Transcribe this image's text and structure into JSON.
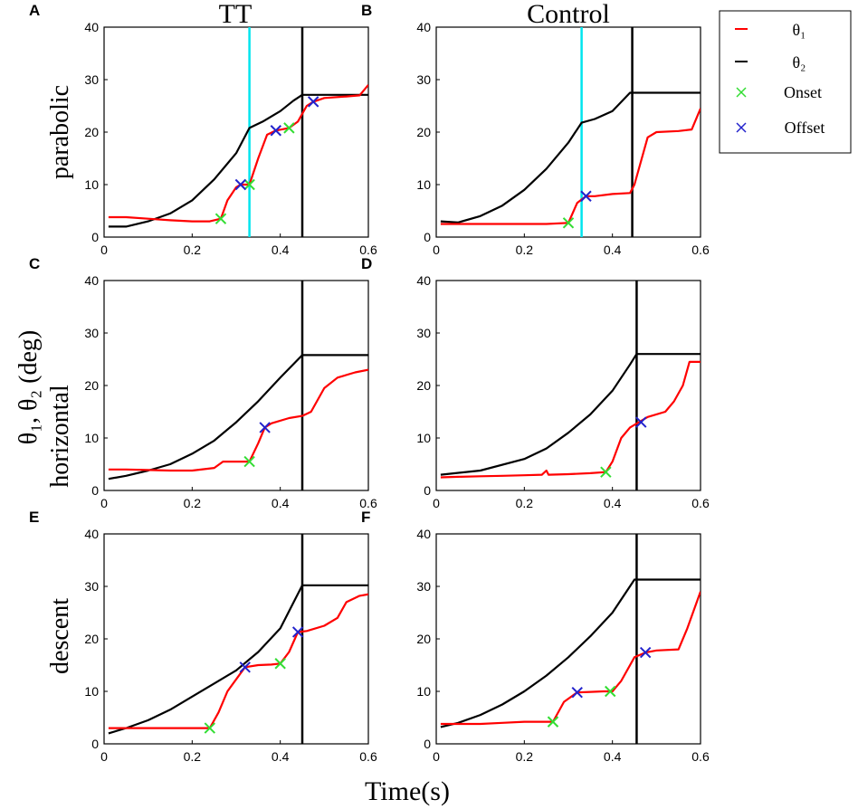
{
  "chart_data": {
    "type": "line",
    "column_titles": [
      "TT",
      "Control"
    ],
    "row_labels": [
      "parabolic",
      "horizontal",
      "descent"
    ],
    "shared_ylabel": "θ₁, θ₂ (deg)",
    "xlabel": "Time(s)",
    "xlim": [
      0,
      0.6
    ],
    "ylim": [
      0,
      40
    ],
    "xticks": [
      "0",
      "0.2",
      "0.4",
      "0.6"
    ],
    "yticks": [
      "0",
      "10",
      "20",
      "30",
      "40"
    ],
    "legend": {
      "position": "top-right",
      "entries": [
        {
          "label": "θ₁",
          "color": "#ff0000",
          "marker": "line"
        },
        {
          "label": "θ₂",
          "color": "#000000",
          "marker": "line"
        },
        {
          "label": "Onset",
          "color": "#33dd33",
          "marker": "x"
        },
        {
          "label": "Offset",
          "color": "#2222cc",
          "marker": "x"
        }
      ]
    },
    "panels": [
      {
        "letter": "A",
        "row": 0,
        "col": 0,
        "vlines": [
          {
            "x": 0.33,
            "color": "#00e5ee"
          },
          {
            "x": 0.45,
            "color": "#000000"
          }
        ],
        "theta2": [
          [
            0.01,
            2.0
          ],
          [
            0.05,
            2.0
          ],
          [
            0.1,
            3.0
          ],
          [
            0.15,
            4.5
          ],
          [
            0.2,
            7.0
          ],
          [
            0.25,
            11.0
          ],
          [
            0.3,
            16.0
          ],
          [
            0.33,
            20.8
          ],
          [
            0.36,
            22.0
          ],
          [
            0.4,
            24.0
          ],
          [
            0.43,
            26.0
          ],
          [
            0.45,
            27.1
          ],
          [
            0.6,
            27.1
          ]
        ],
        "theta1": [
          [
            0.01,
            3.8
          ],
          [
            0.05,
            3.8
          ],
          [
            0.1,
            3.5
          ],
          [
            0.15,
            3.2
          ],
          [
            0.2,
            3.0
          ],
          [
            0.24,
            3.0
          ],
          [
            0.265,
            3.5
          ],
          [
            0.28,
            7.0
          ],
          [
            0.3,
            9.5
          ],
          [
            0.31,
            10.0
          ],
          [
            0.33,
            10.0
          ],
          [
            0.35,
            15.0
          ],
          [
            0.37,
            19.5
          ],
          [
            0.39,
            20.3
          ],
          [
            0.42,
            20.8
          ],
          [
            0.44,
            22.0
          ],
          [
            0.46,
            25.0
          ],
          [
            0.475,
            25.8
          ],
          [
            0.5,
            26.5
          ],
          [
            0.55,
            26.8
          ],
          [
            0.58,
            27.0
          ],
          [
            0.6,
            29.0
          ]
        ],
        "onsets": [
          [
            0.265,
            3.5
          ],
          [
            0.33,
            10.0
          ],
          [
            0.42,
            20.8
          ]
        ],
        "offsets": [
          [
            0.31,
            10.0
          ],
          [
            0.39,
            20.3
          ],
          [
            0.475,
            25.8
          ]
        ]
      },
      {
        "letter": "B",
        "row": 0,
        "col": 1,
        "vlines": [
          {
            "x": 0.33,
            "color": "#00e5ee"
          },
          {
            "x": 0.445,
            "color": "#000000"
          }
        ],
        "theta2": [
          [
            0.01,
            3.0
          ],
          [
            0.05,
            2.8
          ],
          [
            0.1,
            4.0
          ],
          [
            0.15,
            6.0
          ],
          [
            0.2,
            9.0
          ],
          [
            0.25,
            13.0
          ],
          [
            0.3,
            18.0
          ],
          [
            0.33,
            21.8
          ],
          [
            0.36,
            22.5
          ],
          [
            0.4,
            24.0
          ],
          [
            0.44,
            27.5
          ],
          [
            0.6,
            27.5
          ]
        ],
        "theta1": [
          [
            0.01,
            2.5
          ],
          [
            0.1,
            2.5
          ],
          [
            0.2,
            2.5
          ],
          [
            0.25,
            2.5
          ],
          [
            0.3,
            2.7
          ],
          [
            0.32,
            6.5
          ],
          [
            0.34,
            7.8
          ],
          [
            0.36,
            7.8
          ],
          [
            0.4,
            8.2
          ],
          [
            0.44,
            8.4
          ],
          [
            0.45,
            10.0
          ],
          [
            0.48,
            19.0
          ],
          [
            0.5,
            20.0
          ],
          [
            0.55,
            20.2
          ],
          [
            0.58,
            20.5
          ],
          [
            0.6,
            24.5
          ]
        ],
        "onsets": [
          [
            0.3,
            2.7
          ]
        ],
        "offsets": [
          [
            0.34,
            7.8
          ]
        ]
      },
      {
        "letter": "C",
        "row": 1,
        "col": 0,
        "vlines": [
          {
            "x": 0.45,
            "color": "#000000"
          }
        ],
        "theta2": [
          [
            0.01,
            2.2
          ],
          [
            0.05,
            2.8
          ],
          [
            0.1,
            3.8
          ],
          [
            0.15,
            5.0
          ],
          [
            0.2,
            7.0
          ],
          [
            0.25,
            9.5
          ],
          [
            0.3,
            13.0
          ],
          [
            0.35,
            17.0
          ],
          [
            0.4,
            21.5
          ],
          [
            0.45,
            25.8
          ],
          [
            0.6,
            25.8
          ]
        ],
        "theta1": [
          [
            0.01,
            4.0
          ],
          [
            0.05,
            4.0
          ],
          [
            0.1,
            3.9
          ],
          [
            0.15,
            3.8
          ],
          [
            0.2,
            3.8
          ],
          [
            0.25,
            4.3
          ],
          [
            0.27,
            5.5
          ],
          [
            0.33,
            5.5
          ],
          [
            0.35,
            9.0
          ],
          [
            0.365,
            12.0
          ],
          [
            0.38,
            12.8
          ],
          [
            0.42,
            13.8
          ],
          [
            0.45,
            14.2
          ],
          [
            0.47,
            15.0
          ],
          [
            0.5,
            19.5
          ],
          [
            0.53,
            21.5
          ],
          [
            0.57,
            22.5
          ],
          [
            0.6,
            23.0
          ]
        ],
        "onsets": [
          [
            0.33,
            5.5
          ]
        ],
        "offsets": [
          [
            0.365,
            12.0
          ]
        ]
      },
      {
        "letter": "D",
        "row": 1,
        "col": 1,
        "vlines": [
          {
            "x": 0.455,
            "color": "#000000"
          }
        ],
        "theta2": [
          [
            0.01,
            3.0
          ],
          [
            0.1,
            3.8
          ],
          [
            0.2,
            6.0
          ],
          [
            0.25,
            8.0
          ],
          [
            0.3,
            11.0
          ],
          [
            0.35,
            14.5
          ],
          [
            0.4,
            19.0
          ],
          [
            0.44,
            24.0
          ],
          [
            0.455,
            26.0
          ],
          [
            0.6,
            26.0
          ]
        ],
        "theta1": [
          [
            0.01,
            2.5
          ],
          [
            0.05,
            2.6
          ],
          [
            0.1,
            2.7
          ],
          [
            0.15,
            2.8
          ],
          [
            0.2,
            2.9
          ],
          [
            0.24,
            3.0
          ],
          [
            0.25,
            3.8
          ],
          [
            0.255,
            3.0
          ],
          [
            0.3,
            3.1
          ],
          [
            0.35,
            3.3
          ],
          [
            0.385,
            3.5
          ],
          [
            0.4,
            5.5
          ],
          [
            0.42,
            10.0
          ],
          [
            0.44,
            12.0
          ],
          [
            0.46,
            13.0
          ],
          [
            0.48,
            14.0
          ],
          [
            0.52,
            15.0
          ],
          [
            0.54,
            17.0
          ],
          [
            0.56,
            20.0
          ],
          [
            0.575,
            24.5
          ],
          [
            0.6,
            24.5
          ]
        ],
        "onsets": [
          [
            0.385,
            3.5
          ]
        ],
        "offsets": [
          [
            0.465,
            13.0
          ]
        ]
      },
      {
        "letter": "E",
        "row": 2,
        "col": 0,
        "vlines": [
          {
            "x": 0.45,
            "color": "#000000"
          }
        ],
        "theta2": [
          [
            0.01,
            2.0
          ],
          [
            0.05,
            3.0
          ],
          [
            0.1,
            4.5
          ],
          [
            0.15,
            6.5
          ],
          [
            0.2,
            9.0
          ],
          [
            0.25,
            11.5
          ],
          [
            0.3,
            14.0
          ],
          [
            0.35,
            17.5
          ],
          [
            0.4,
            22.0
          ],
          [
            0.45,
            30.2
          ],
          [
            0.6,
            30.2
          ]
        ],
        "theta1": [
          [
            0.01,
            3.0
          ],
          [
            0.05,
            3.0
          ],
          [
            0.1,
            3.0
          ],
          [
            0.15,
            3.0
          ],
          [
            0.2,
            3.0
          ],
          [
            0.24,
            3.0
          ],
          [
            0.26,
            6.0
          ],
          [
            0.28,
            10.0
          ],
          [
            0.32,
            14.6
          ],
          [
            0.35,
            15.0
          ],
          [
            0.38,
            15.1
          ],
          [
            0.4,
            15.3
          ],
          [
            0.42,
            17.5
          ],
          [
            0.44,
            21.3
          ],
          [
            0.46,
            21.5
          ],
          [
            0.5,
            22.5
          ],
          [
            0.53,
            24.0
          ],
          [
            0.55,
            27.0
          ],
          [
            0.58,
            28.2
          ],
          [
            0.6,
            28.5
          ]
        ],
        "onsets": [
          [
            0.24,
            3.0
          ],
          [
            0.4,
            15.3
          ]
        ],
        "offsets": [
          [
            0.32,
            14.6
          ],
          [
            0.44,
            21.3
          ]
        ]
      },
      {
        "letter": "F",
        "row": 2,
        "col": 1,
        "vlines": [
          {
            "x": 0.455,
            "color": "#000000"
          }
        ],
        "theta2": [
          [
            0.01,
            3.2
          ],
          [
            0.05,
            4.0
          ],
          [
            0.1,
            5.5
          ],
          [
            0.15,
            7.5
          ],
          [
            0.2,
            10.0
          ],
          [
            0.25,
            13.0
          ],
          [
            0.3,
            16.5
          ],
          [
            0.35,
            20.5
          ],
          [
            0.4,
            25.0
          ],
          [
            0.45,
            31.3
          ],
          [
            0.6,
            31.3
          ]
        ],
        "theta1": [
          [
            0.01,
            3.8
          ],
          [
            0.05,
            3.8
          ],
          [
            0.1,
            3.8
          ],
          [
            0.15,
            4.0
          ],
          [
            0.2,
            4.2
          ],
          [
            0.25,
            4.2
          ],
          [
            0.265,
            4.2
          ],
          [
            0.29,
            8.0
          ],
          [
            0.32,
            9.8
          ],
          [
            0.35,
            9.9
          ],
          [
            0.38,
            10.0
          ],
          [
            0.4,
            10.0
          ],
          [
            0.42,
            12.0
          ],
          [
            0.45,
            16.5
          ],
          [
            0.475,
            17.4
          ],
          [
            0.5,
            17.8
          ],
          [
            0.55,
            18.0
          ],
          [
            0.57,
            22.0
          ],
          [
            0.6,
            29.0
          ]
        ],
        "onsets": [
          [
            0.265,
            4.2
          ],
          [
            0.395,
            10.0
          ]
        ],
        "offsets": [
          [
            0.32,
            9.8
          ],
          [
            0.475,
            17.4
          ]
        ]
      }
    ]
  }
}
